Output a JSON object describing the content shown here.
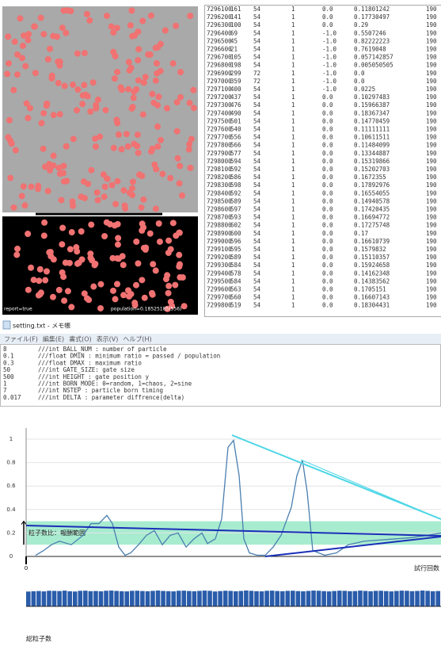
{
  "simulation": {
    "left_label": "report=true",
    "right_label": "population=0.18525185(556)"
  },
  "log": {
    "rows": [
      [
        "7296100",
        "161",
        "54",
        "1",
        "0.0",
        "0.11801242",
        "190"
      ],
      [
        "7296200",
        "141",
        "54",
        "1",
        "0.0",
        "0.17730497",
        "190"
      ],
      [
        "7296300",
        "100",
        "54",
        "1",
        "0.0",
        "0.29",
        "190"
      ],
      [
        "7296400",
        "69",
        "54",
        "1",
        "-1.0",
        "0.5507246",
        "190"
      ],
      [
        "7296500",
        "45",
        "54",
        "1",
        "-1.0",
        "0.82222223",
        "190"
      ],
      [
        "7296600",
        "21",
        "54",
        "1",
        "-1.0",
        "0.7619048",
        "190"
      ],
      [
        "7296700",
        "105",
        "54",
        "1",
        "-1.0",
        "0.057142857",
        "190"
      ],
      [
        "7296800",
        "198",
        "54",
        "1",
        "-1.0",
        "0.005050505",
        "190"
      ],
      [
        "7296900",
        "299",
        "72",
        "1",
        "-1.0",
        "0.0",
        "190"
      ],
      [
        "7297000",
        "359",
        "72",
        "1",
        "-1.0",
        "0.0",
        "190"
      ],
      [
        "7297100",
        "400",
        "54",
        "1",
        "-1.0",
        "0.0225",
        "190"
      ],
      [
        "7297200",
        "437",
        "54",
        "1",
        "0.0",
        "0.10297483",
        "190"
      ],
      [
        "7297300",
        "476",
        "54",
        "1",
        "0.0",
        "0.15966387",
        "190"
      ],
      [
        "7297400",
        "490",
        "54",
        "1",
        "0.0",
        "0.18367347",
        "190"
      ],
      [
        "7297500",
        "501",
        "54",
        "1",
        "0.0",
        "0.14770459",
        "190"
      ],
      [
        "7297600",
        "540",
        "54",
        "1",
        "0.0",
        "0.11111111",
        "190"
      ],
      [
        "7297700",
        "556",
        "54",
        "1",
        "0.0",
        "0.10611511",
        "190"
      ],
      [
        "7297800",
        "566",
        "54",
        "1",
        "0.0",
        "0.11484099",
        "190"
      ],
      [
        "7297900",
        "577",
        "54",
        "1",
        "0.0",
        "0.13344887",
        "190"
      ],
      [
        "7298000",
        "594",
        "54",
        "1",
        "0.0",
        "0.15319866",
        "190"
      ],
      [
        "7298100",
        "592",
        "54",
        "1",
        "0.0",
        "0.15202703",
        "190"
      ],
      [
        "7298200",
        "586",
        "54",
        "1",
        "0.0",
        "0.1672355",
        "190"
      ],
      [
        "7298300",
        "598",
        "54",
        "1",
        "0.0",
        "0.17892976",
        "190"
      ],
      [
        "7298400",
        "592",
        "54",
        "1",
        "0.0",
        "0.16554055",
        "190"
      ],
      [
        "7298500",
        "589",
        "54",
        "1",
        "0.0",
        "0.14940578",
        "190"
      ],
      [
        "7298600",
        "597",
        "54",
        "1",
        "0.0",
        "0.17420435",
        "190"
      ],
      [
        "7298700",
        "593",
        "54",
        "1",
        "0.0",
        "0.16694772",
        "190"
      ],
      [
        "7298800",
        "602",
        "54",
        "1",
        "0.0",
        "0.17275748",
        "190"
      ],
      [
        "7298900",
        "600",
        "54",
        "1",
        "0.0",
        "0.17",
        "190"
      ],
      [
        "7299000",
        "596",
        "54",
        "1",
        "0.0",
        "0.16610739",
        "190"
      ],
      [
        "7299100",
        "595",
        "54",
        "1",
        "0.0",
        "0.1579832",
        "190"
      ],
      [
        "7299200",
        "589",
        "54",
        "1",
        "0.0",
        "0.15110357",
        "190"
      ],
      [
        "7299300",
        "584",
        "54",
        "1",
        "0.0",
        "0.15924658",
        "190"
      ],
      [
        "7299400",
        "578",
        "54",
        "1",
        "0.0",
        "0.14162348",
        "190"
      ],
      [
        "7299500",
        "584",
        "54",
        "1",
        "0.0",
        "0.14383562",
        "190"
      ],
      [
        "7299600",
        "563",
        "54",
        "1",
        "0.0",
        "0.1705151",
        "190"
      ],
      [
        "7299700",
        "560",
        "54",
        "1",
        "0.0",
        "0.16607143",
        "190"
      ],
      [
        "7299800",
        "519",
        "54",
        "1",
        "0.0",
        "0.18304431",
        "190"
      ]
    ]
  },
  "notepad": {
    "title": "setting.txt - メモ帳",
    "menu": [
      "ファイル(F)",
      "編集(E)",
      "書式(O)",
      "表示(V)",
      "ヘルプ(H)"
    ],
    "lines": [
      [
        "8",
        "///int BALL_NUM : number of particle"
      ],
      [
        "0.1",
        "///float DMIN : minimum ratio = passed / population"
      ],
      [
        "0.3",
        "///float DMAX : maximum ratio"
      ],
      [
        "50",
        "///int GATE_SIZE: gate size"
      ],
      [
        "500",
        "///int HEIGHT : gate position y"
      ],
      [
        "1",
        "///int BORN_MODE: 0=random, 1=chaos, 2=sine"
      ],
      [
        "7",
        "///int NSTEP : particle born timing"
      ],
      [
        "0.017",
        "///int DELTA : parameter diffrence(delta)"
      ]
    ]
  },
  "chart_data": [
    {
      "type": "line",
      "x_label": "試行回数",
      "color": "#4a7fb0",
      "grid": true,
      "band": {
        "range": [
          0.1,
          0.3
        ],
        "label": "粒子数比：報酬範囲",
        "color": "#a8ecd0"
      },
      "x": [
        12,
        22,
        32,
        42,
        57,
        72,
        82,
        92,
        102,
        109,
        117,
        125,
        132,
        142,
        152,
        162,
        172,
        182,
        192,
        202,
        212,
        222,
        229,
        239,
        247,
        255,
        262,
        269,
        275,
        282,
        292,
        302,
        312,
        322,
        335,
        342,
        349,
        355,
        362,
        377,
        392,
        407,
        427,
        447,
        467,
        487,
        507,
        524
      ],
      "values": [
        0.01,
        0.05,
        0.1,
        0.13,
        0.1,
        0.18,
        0.28,
        0.28,
        0.35,
        0.28,
        0.08,
        0.01,
        0.03,
        0.1,
        0.18,
        0.22,
        0.1,
        0.18,
        0.2,
        0.08,
        0.15,
        0.2,
        0.11,
        0.15,
        0.32,
        0.93,
        0.99,
        0.69,
        0.15,
        0.03,
        0.01,
        0.01,
        0.08,
        0.18,
        0.42,
        0.69,
        0.82,
        0.55,
        0.05,
        0.01,
        0.03,
        0.1,
        0.13,
        0.14,
        0.15,
        0.16,
        0.18,
        0.2
      ],
      "xlim": [
        0,
        524
      ],
      "xticks": [
        0
      ],
      "ylim": [
        0,
        1
      ],
      "yticks": [
        0,
        0.2,
        0.4,
        0.6,
        0.8,
        1
      ]
    },
    {
      "type": "bar",
      "x_label": "総粒子数",
      "color": "#2a5caa",
      "values": [
        560,
        572,
        580,
        566,
        590,
        585,
        578,
        595,
        570,
        562,
        588,
        593,
        575,
        581,
        569,
        590,
        597,
        584,
        573,
        566,
        588,
        592,
        579,
        571,
        586,
        598,
        583,
        575,
        567,
        590,
        594,
        581,
        572,
        585,
        596,
        588,
        563,
        578,
        591,
        584,
        570,
        582,
        599,
        587,
        574,
        568,
        589,
        595,
        580,
        573,
        586,
        592,
        577,
        569,
        583,
        597,
        590,
        576,
        565,
        581,
        593,
        588,
        574,
        579,
        596,
        584,
        571,
        587,
        590,
        578,
        566,
        582,
        594,
        589,
        575,
        583,
        598,
        586,
        572,
        580
      ]
    }
  ]
}
